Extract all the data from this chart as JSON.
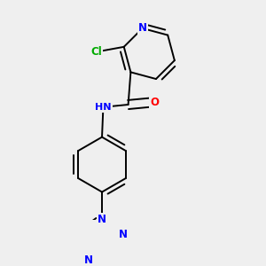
{
  "bg_color": "#efefef",
  "atom_colors": {
    "N": "#0000ff",
    "O": "#ff0000",
    "Cl": "#00aa00",
    "C": "#000000",
    "H": "#444444"
  },
  "bond_color": "#000000",
  "font_size": 8.5,
  "fig_width": 3.0,
  "fig_height": 3.0,
  "lw": 1.4
}
